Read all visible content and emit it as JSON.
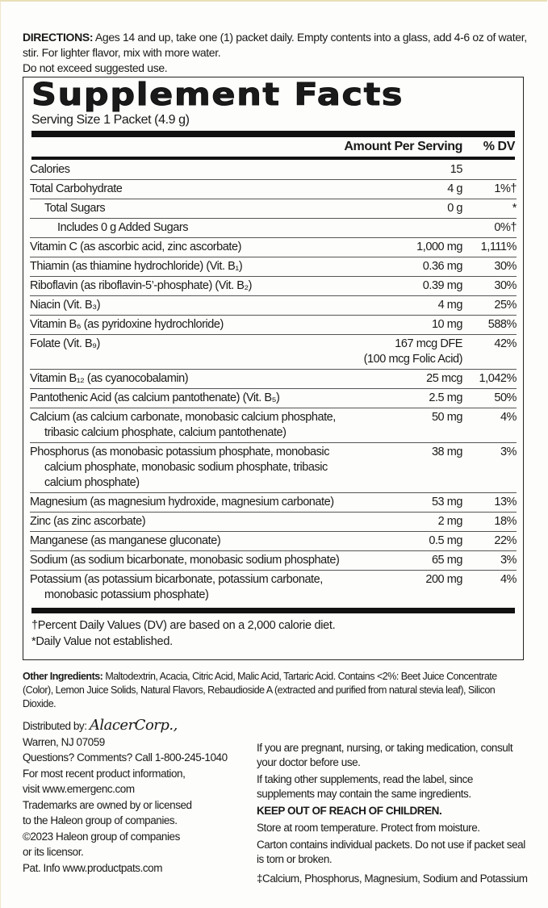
{
  "directions": {
    "label": "DIRECTIONS:",
    "text": " Ages 14 and up, take one (1) packet daily. Empty contents into a glass, add 4-6 oz of water, stir. For lighter flavor, mix with more water.",
    "warning": "Do not exceed suggested use."
  },
  "facts": {
    "title": "Supplement Facts",
    "serving_size": "Serving Size 1 Packet (4.9 g)",
    "header_amount": "Amount Per Serving",
    "header_dv": "% DV",
    "rows": [
      {
        "name": "Calories",
        "amount": "15",
        "dv": ""
      },
      {
        "name": "Total Carbohydrate",
        "amount": "4 g",
        "dv": "1%†"
      },
      {
        "name": "Total Sugars",
        "amount": "0 g",
        "dv": "*"
      },
      {
        "name": "Includes 0 g Added Sugars",
        "amount": "",
        "dv": "0%†"
      },
      {
        "name": "Vitamin C (as ascorbic acid, zinc ascorbate)",
        "amount": "1,000 mg",
        "dv": "1,111%"
      },
      {
        "name": "Thiamin (as thiamine hydrochloride) (Vit. B₁)",
        "amount": "0.36 mg",
        "dv": "30%"
      },
      {
        "name": "Riboflavin (as riboflavin-5’-phosphate) (Vit. B₂)",
        "amount": "0.39 mg",
        "dv": "30%"
      },
      {
        "name": "Niacin (Vit. B₃)",
        "amount": "4 mg",
        "dv": "25%"
      },
      {
        "name": "Vitamin B₆ (as pyridoxine hydrochloride)",
        "amount": "10 mg",
        "dv": "588%"
      },
      {
        "name": "Folate (Vit. B₉)",
        "amount": "167 mcg DFE",
        "amount_sub": "(100 mcg Folic Acid)",
        "dv": "42%"
      },
      {
        "name": "Vitamin B₁₂ (as cyanocobalamin)",
        "amount": "25 mcg",
        "dv": "1,042%"
      },
      {
        "name": "Pantothenic Acid (as calcium pantothenate) (Vit. B₅)",
        "amount": "2.5 mg",
        "dv": "50%"
      },
      {
        "name": "Calcium (as calcium carbonate, monobasic calcium phosphate,",
        "name2": "tribasic calcium phosphate, calcium pantothenate)",
        "amount": "50 mg",
        "dv": "4%"
      },
      {
        "name": "Phosphorus (as monobasic potassium phosphate, monobasic",
        "name2": "calcium phosphate, monobasic sodium phosphate, tribasic",
        "name3": "calcium phosphate)",
        "amount": "38 mg",
        "dv": "3%"
      },
      {
        "name": "Magnesium (as magnesium hydroxide, magnesium carbonate)",
        "amount": "53 mg",
        "dv": "13%"
      },
      {
        "name": "Zinc (as zinc ascorbate)",
        "amount": "2 mg",
        "dv": "18%"
      },
      {
        "name": "Manganese (as manganese gluconate)",
        "amount": "0.5 mg",
        "dv": "22%"
      },
      {
        "name": "Sodium (as sodium bicarbonate, monobasic sodium phosphate)",
        "amount": "65 mg",
        "dv": "3%"
      },
      {
        "name": "Potassium (as potassium bicarbonate, potassium carbonate,",
        "name2": "monobasic potassium phosphate)",
        "amount": "200 mg",
        "dv": "4%"
      }
    ],
    "footnote1": "†Percent Daily Values (DV) are based on a 2,000 calorie diet.",
    "footnote2": "*Daily Value not established."
  },
  "other_ingredients": {
    "label": "Other Ingredients:",
    "text": " Maltodextrin, Acacia, Citric Acid, Malic Acid, Tartaric Acid. Contains <2%:  Beet Juice Concentrate (Color), Lemon Juice Solids, Natural Flavors, Rebaudioside A (extracted and purified from natural stevia leaf), Silicon Dioxide."
  },
  "distributor": {
    "label": "Distributed by: ",
    "logo": "AlacerCorp.,",
    "lines": [
      "Warren, NJ 07059",
      "Questions? Comments? Call 1-800-245-1040",
      "For most recent product information,",
      "visit www.emergenc.com",
      "Trademarks are owned by or licensed",
      "to the Haleon group of companies.",
      "©2023 Haleon group of companies",
      "or its licensor.",
      "Pat. Info www.productpats.com"
    ]
  },
  "warnings": {
    "pregnant": "If you are pregnant, nursing, or taking medication, consult your doctor before use.",
    "supplements": "If taking other supplements, read the label, since supplements may contain the same ingredients.",
    "children": "KEEP OUT OF REACH OF CHILDREN.",
    "storage": "Store at room temperature. Protect from moisture.",
    "carton": "Carton contains individual packets. Do not use if packet seal is torn or broken.",
    "minerals": "‡Calcium, Phosphorus, Magnesium, Sodium and Potassium"
  }
}
